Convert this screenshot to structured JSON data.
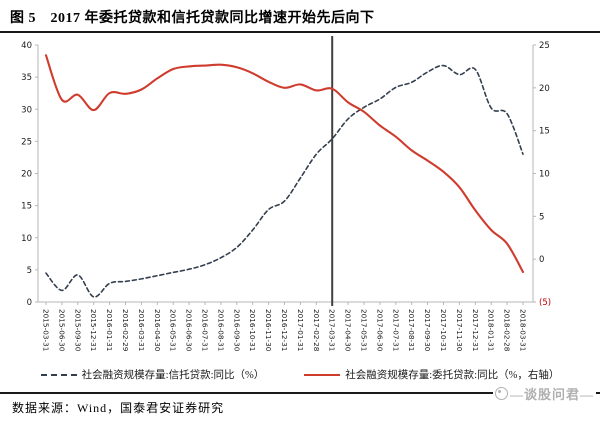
{
  "header": {
    "title": "图 5　2017 年委托贷款和信托贷款同比增速开始先后向下"
  },
  "footer": {
    "source": "数据来源：Wind，国泰君安证券研究",
    "watermark": "—谈股问君—"
  },
  "chart_data": {
    "type": "line",
    "title": "",
    "xlabel": "",
    "ylabel_left": "",
    "ylabel_right": "",
    "grid": false,
    "legend_position": "bottom",
    "categories": [
      "2015-03-31",
      "2015-06-30",
      "2015-09-30",
      "2015-12-31",
      "2016-01-31",
      "2016-02-29",
      "2016-03-31",
      "2016-04-30",
      "2016-05-31",
      "2016-06-30",
      "2016-07-31",
      "2016-08-31",
      "2016-09-30",
      "2016-10-31",
      "2016-11-30",
      "2016-12-31",
      "2017-01-31",
      "2017-02-28",
      "2017-03-31",
      "2017-04-30",
      "2017-05-31",
      "2017-06-30",
      "2017-07-31",
      "2017-08-31",
      "2017-09-30",
      "2017-10-31",
      "2017-11-30",
      "2017-12-31",
      "2018-01-31",
      "2018-02-28",
      "2018-03-31"
    ],
    "series": [
      {
        "name": "社会融资规模存量:信托贷款:同比（%）",
        "axis": "left",
        "style": "dashed",
        "color": "#333f4e",
        "values": [
          4.5,
          1.8,
          4.2,
          0.8,
          2.9,
          3.2,
          3.6,
          4.1,
          4.6,
          5.1,
          5.8,
          6.9,
          8.5,
          11.2,
          14.4,
          15.7,
          19.3,
          23.0,
          25.4,
          28.5,
          30.3,
          31.6,
          33.4,
          34.2,
          35.8,
          36.8,
          35.4,
          36.2,
          30.2,
          29.3,
          23.0
        ]
      },
      {
        "name": "社会融资规模存量:委托贷款:同比（%，右轴）",
        "axis": "right",
        "style": "solid",
        "color": "#cf3c2e",
        "values": [
          23.8,
          18.6,
          19.2,
          17.4,
          19.4,
          19.3,
          19.8,
          21.1,
          22.2,
          22.5,
          22.6,
          22.7,
          22.4,
          21.7,
          20.7,
          20.0,
          20.4,
          19.7,
          19.9,
          18.3,
          17.2,
          15.6,
          14.3,
          12.7,
          11.5,
          10.2,
          8.4,
          5.7,
          3.4,
          1.8,
          -1.5
        ]
      }
    ],
    "left_axis": {
      "min": 0,
      "max": 40,
      "ticks": [
        "0",
        "5",
        "10",
        "15",
        "20",
        "25",
        "30",
        "35",
        "40"
      ]
    },
    "right_axis": {
      "min": -5,
      "max": 25,
      "ticks": [
        "(5)",
        "0",
        "5",
        "10",
        "15",
        "20",
        "25"
      ],
      "negative_color": "#c00000"
    },
    "annotation_line": {
      "category": "2017-03-31",
      "color": "#404040"
    },
    "axis_color": "#b7b7b7",
    "tick_label_color": "#1a1a1a"
  }
}
